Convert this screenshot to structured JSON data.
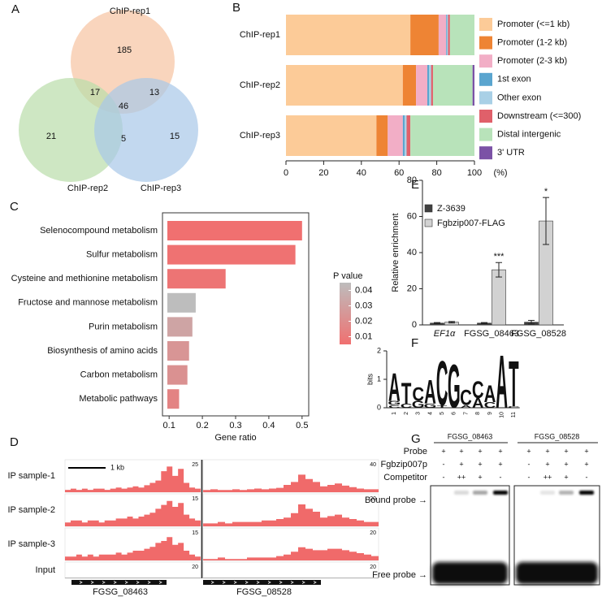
{
  "panel_labels": [
    "A",
    "B",
    "C",
    "D",
    "E",
    "F",
    "G"
  ],
  "venn": {
    "sets": [
      {
        "name": "ChIP-rep1",
        "color": "#f7c3a1"
      },
      {
        "name": "ChIP-rep2",
        "color": "#b9ddaa"
      },
      {
        "name": "ChIP-rep3",
        "color": "#a8c7e8"
      }
    ],
    "regions": [
      185,
      17,
      13,
      46,
      21,
      5,
      15
    ]
  },
  "chart_data": [
    {
      "type": "stacked_barh",
      "categories": [
        "ChIP-rep1",
        "ChIP-rep2",
        "ChIP-rep3"
      ],
      "series": [
        {
          "name": "Promoter (<=1 kb)",
          "color": "#fccb98",
          "values": [
            66,
            62,
            48
          ]
        },
        {
          "name": "Promoter (1-2 kb)",
          "color": "#ee8434",
          "values": [
            15,
            7,
            6
          ]
        },
        {
          "name": "Promoter (2-3 kb)",
          "color": "#f2aec6",
          "values": [
            4,
            6,
            8
          ]
        },
        {
          "name": "1st exon",
          "color": "#5aa5cf",
          "values": [
            0.5,
            1,
            1
          ]
        },
        {
          "name": "Other exon",
          "color": "#a9d0e6",
          "values": [
            0.5,
            1,
            1
          ]
        },
        {
          "name": "Downstream (<=300)",
          "color": "#e0606a",
          "values": [
            1,
            1,
            2
          ]
        },
        {
          "name": "Distal intergenic",
          "color": "#b8e3ba",
          "values": [
            13,
            21,
            34
          ]
        },
        {
          "name": "3' UTR",
          "color": "#7b52a6",
          "values": [
            0,
            1,
            0
          ]
        }
      ],
      "xlim": [
        0,
        100
      ],
      "xticks": [
        0,
        20,
        40,
        60,
        80,
        100
      ],
      "xlabel": "(%)"
    },
    {
      "type": "barh",
      "categories": [
        "Selenocompound metabolism",
        "Sulfur metabolism",
        "Cysteine and methionine metabolism",
        "Fructose and mannose metabolism",
        "Purin metabolism",
        "Biosynthesis of amino acids",
        "Carbon metabolism",
        "Metabolic pathways"
      ],
      "values": [
        0.5,
        0.48,
        0.27,
        0.18,
        0.17,
        0.16,
        0.155,
        0.13
      ],
      "pvalues": [
        0.005,
        0.006,
        0.007,
        0.045,
        0.032,
        0.024,
        0.022,
        0.015
      ],
      "color_scale": {
        "title": "P value",
        "low_color": "#f07070",
        "high_color": "#bdbdbd",
        "lim": [
          0.005,
          0.045
        ],
        "ticks": [
          0.04,
          0.03,
          0.02,
          0.01
        ]
      },
      "xlim": [
        0.08,
        0.52
      ],
      "xticks": [
        0.1,
        0.2,
        0.3,
        0.4,
        0.5
      ],
      "xlabel": "Gene ratio"
    },
    {
      "type": "grouped_bar",
      "categories": [
        "EF1α",
        "FGSG_08463",
        "FGSG_08528"
      ],
      "series": [
        {
          "name": "Z-3639",
          "color": "#404040",
          "values": [
            1,
            1,
            1.5
          ],
          "errors": [
            0.3,
            0.3,
            1
          ]
        },
        {
          "name": "Fgbzip007-FLAG",
          "color": "#d2d2d2",
          "values": [
            1.5,
            30.5,
            57.5
          ],
          "errors": [
            0.4,
            4,
            13
          ]
        }
      ],
      "annotations": [
        null,
        "***",
        "*"
      ],
      "ylim": [
        0,
        80
      ],
      "yticks": [
        0,
        20,
        40,
        60,
        80
      ],
      "ylabel": "Relative enrichment"
    }
  ],
  "motif": {
    "ylabel": "bits",
    "ylim": [
      0,
      2
    ],
    "yticks": [
      0,
      1,
      2
    ],
    "positions": [
      1,
      2,
      3,
      4,
      5,
      6,
      7,
      8,
      9,
      10,
      11
    ],
    "colors": {
      "A": "#e03c31",
      "C": "#2b55b5",
      "G": "#f5b800",
      "T": "#1a9a50"
    },
    "stacks": [
      [
        {
          "letter": "C",
          "bits": 0.1
        },
        {
          "letter": "G",
          "bits": 0.15
        },
        {
          "letter": "A",
          "bits": 1.0
        }
      ],
      [
        {
          "letter": "C",
          "bits": 0.15
        },
        {
          "letter": "T",
          "bits": 0.75
        }
      ],
      [
        {
          "letter": "G",
          "bits": 0.25
        },
        {
          "letter": "C",
          "bits": 0.5
        }
      ],
      [
        {
          "letter": "G",
          "bits": 0.15
        },
        {
          "letter": "A",
          "bits": 0.85
        }
      ],
      [
        {
          "letter": "T",
          "bits": 0.1
        },
        {
          "letter": "C",
          "bits": 1.6
        }
      ],
      [
        {
          "letter": "G",
          "bits": 1.55
        }
      ],
      [
        {
          "letter": "A",
          "bits": 0.1
        },
        {
          "letter": "C",
          "bits": 0.55
        }
      ],
      [
        {
          "letter": "A",
          "bits": 0.35
        },
        {
          "letter": "C",
          "bits": 0.6
        }
      ],
      [
        {
          "letter": "C",
          "bits": 0.2
        },
        {
          "letter": "A",
          "bits": 0.6
        }
      ],
      [
        {
          "letter": "A",
          "bits": 1.9
        }
      ],
      [
        {
          "letter": "C",
          "bits": 0.05
        },
        {
          "letter": "T",
          "bits": 1.65
        }
      ]
    ]
  },
  "tracks": {
    "scale_bar": "1 kb",
    "genes": [
      "FGSG_08463",
      "FGSG_08528"
    ],
    "rows": [
      {
        "name": "IP sample-1",
        "color": "#f06a6a",
        "max": [
          25,
          40
        ],
        "profiles": [
          [
            2,
            3,
            2,
            3,
            2,
            3,
            3,
            2,
            3,
            4,
            3,
            4,
            5,
            4,
            6,
            8,
            10,
            18,
            22,
            14,
            20,
            8,
            4,
            3
          ],
          [
            3,
            4,
            3,
            3,
            4,
            3,
            4,
            5,
            4,
            5,
            6,
            10,
            14,
            24,
            18,
            14,
            8,
            10,
            12,
            9,
            7,
            5,
            4,
            4
          ]
        ]
      },
      {
        "name": "IP sample-2",
        "color": "#f06a6a",
        "max": [
          15,
          20
        ],
        "profiles": [
          [
            2,
            3,
            3,
            2,
            3,
            3,
            2,
            3,
            3,
            4,
            4,
            5,
            4,
            5,
            6,
            7,
            9,
            11,
            13,
            10,
            12,
            6,
            4,
            3
          ],
          [
            2,
            2,
            3,
            2,
            3,
            3,
            3,
            3,
            4,
            4,
            5,
            6,
            9,
            15,
            12,
            10,
            6,
            7,
            8,
            6,
            5,
            4,
            3,
            3
          ]
        ]
      },
      {
        "name": "IP sample-3",
        "color": "#f06a6a",
        "max": [
          15,
          20
        ],
        "profiles": [
          [
            2,
            2,
            3,
            2,
            3,
            2,
            3,
            3,
            3,
            4,
            3,
            4,
            5,
            5,
            6,
            7,
            9,
            10,
            12,
            8,
            9,
            5,
            3,
            2
          ],
          [
            1,
            1,
            2,
            1,
            1,
            1,
            2,
            2,
            2,
            2,
            3,
            4,
            6,
            9,
            8,
            7,
            7,
            8,
            8,
            7,
            6,
            5,
            4,
            3
          ]
        ]
      },
      {
        "name": "Input",
        "color": "#9e9e9e",
        "max": [
          20,
          20
        ],
        "profiles": [
          [
            1,
            1,
            1,
            1,
            1,
            1,
            1,
            1,
            1,
            1,
            1,
            1,
            1,
            1,
            1,
            1,
            1,
            1,
            1,
            1,
            1,
            1,
            1,
            1
          ],
          [
            1,
            1,
            1,
            1,
            1,
            1,
            1,
            1,
            1,
            1,
            1,
            1,
            1,
            1,
            1,
            1,
            1,
            1,
            1,
            1,
            1,
            1,
            1,
            1
          ]
        ]
      }
    ]
  },
  "gel": {
    "columns": [
      "FGSG_08463",
      "FGSG_08528"
    ],
    "rows": [
      {
        "name": "Probe",
        "marks": [
          [
            "+",
            "+",
            "+",
            "+"
          ],
          [
            "+",
            "+",
            "+",
            "+"
          ]
        ]
      },
      {
        "name": "Fgbzip007p",
        "marks": [
          [
            "-",
            "+",
            "+",
            "+"
          ],
          [
            "-",
            "+",
            "+",
            "+"
          ]
        ]
      },
      {
        "name": "Competitor",
        "marks": [
          [
            "-",
            "++",
            "+",
            "-"
          ],
          [
            "-",
            "++",
            "+",
            "-"
          ]
        ]
      }
    ],
    "bound_label": "Bound probe →",
    "free_label": "Free probe →",
    "bound_intensity": [
      [
        0,
        0.15,
        0.35,
        1
      ],
      [
        0,
        0.1,
        0.3,
        1
      ]
    ]
  }
}
